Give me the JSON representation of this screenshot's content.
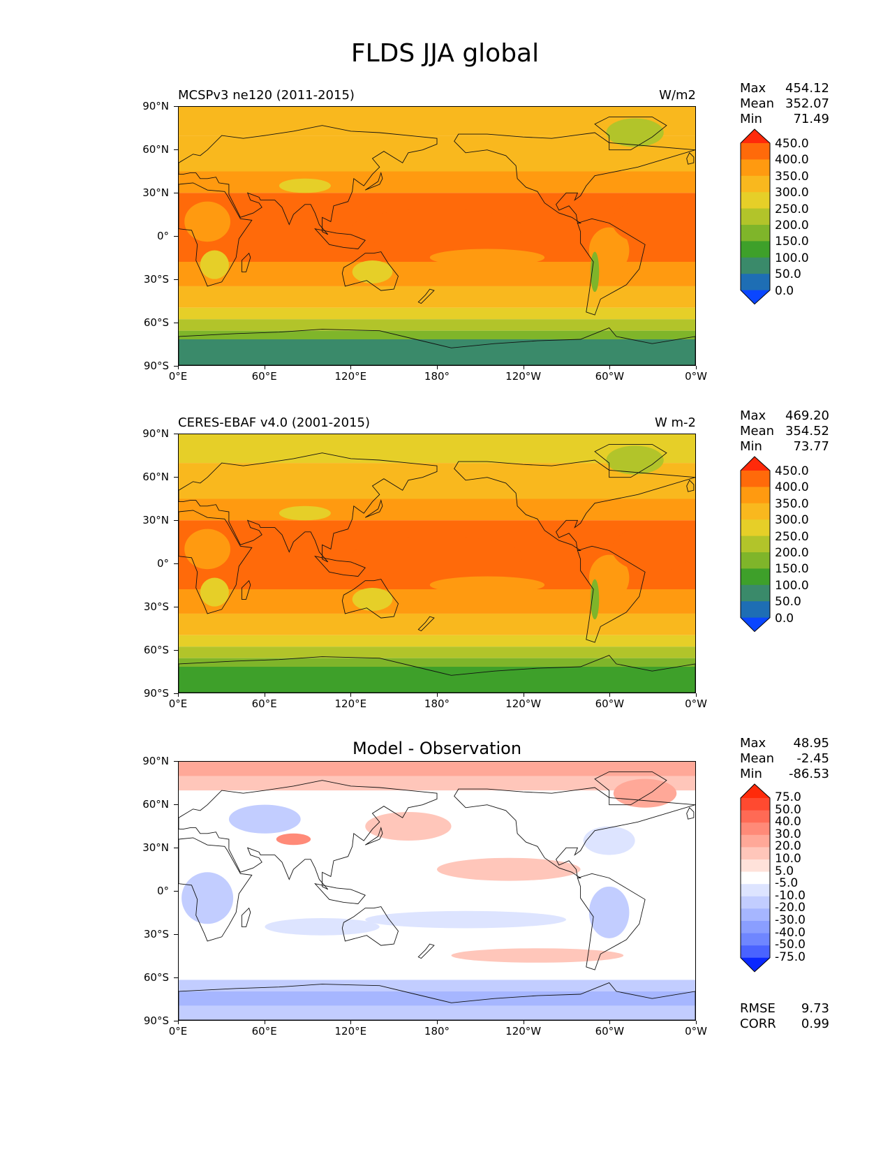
{
  "figure_title": "FLDS JJA global",
  "axes": {
    "lat_labels": [
      "90°N",
      "60°N",
      "30°N",
      "0°",
      "30°S",
      "60°S",
      "90°S"
    ],
    "lon_labels": [
      "0°E",
      "60°E",
      "120°E",
      "180°",
      "120°W",
      "60°W",
      "0°W"
    ]
  },
  "panels": [
    {
      "left_title": "MCSPv3 ne120 (2011-2015)",
      "right_title": "W/m2",
      "center_title": "",
      "stats": {
        "max_label": "Max",
        "max": "454.12",
        "mean_label": "Mean",
        "mean": "352.07",
        "min_label": "Min",
        "min": "71.49"
      },
      "colorbar_labels": [
        "450.0",
        "400.0",
        "350.0",
        "300.0",
        "250.0",
        "200.0",
        "150.0",
        "100.0",
        "50.0",
        "0.0"
      ],
      "colorbar_colors": [
        "#ff2a0a",
        "#ff6a0a",
        "#ff9a10",
        "#f9b81e",
        "#e6cf28",
        "#b2c42a",
        "#7fb52a",
        "#3ea02a",
        "#3a8a6a",
        "#1e6eb4",
        "#0a46ff"
      ]
    },
    {
      "left_title": "CERES-EBAF v4.0 (2001-2015)",
      "right_title": "W m-2",
      "center_title": "",
      "stats": {
        "max_label": "Max",
        "max": "469.20",
        "mean_label": "Mean",
        "mean": "354.52",
        "min_label": "Min",
        "min": "73.77"
      },
      "colorbar_labels": [
        "450.0",
        "400.0",
        "350.0",
        "300.0",
        "250.0",
        "200.0",
        "150.0",
        "100.0",
        "50.0",
        "0.0"
      ],
      "colorbar_colors": [
        "#ff2a0a",
        "#ff6a0a",
        "#ff9a10",
        "#f9b81e",
        "#e6cf28",
        "#b2c42a",
        "#7fb52a",
        "#3ea02a",
        "#3a8a6a",
        "#1e6eb4",
        "#0a46ff"
      ]
    },
    {
      "left_title": "",
      "right_title": "",
      "center_title": "Model - Observation",
      "stats": {
        "max_label": "Max",
        "max": "48.95",
        "mean_label": "Mean",
        "mean": "-2.45",
        "min_label": "Min",
        "min": "-86.53"
      },
      "colorbar_labels": [
        "75.0",
        "50.0",
        "40.0",
        "30.0",
        "20.0",
        "10.0",
        "5.0",
        "-5.0",
        "-10.0",
        "-20.0",
        "-30.0",
        "-40.0",
        "-50.0",
        "-75.0"
      ],
      "colorbar_colors": [
        "#ff2a0a",
        "#ff4a30",
        "#ff6a55",
        "#ff8a78",
        "#ffa898",
        "#ffc6ba",
        "#ffe2da",
        "#ffffff",
        "#dde4ff",
        "#c2cdff",
        "#a6b6ff",
        "#8a9eff",
        "#6f86ff",
        "#4a63ff",
        "#0a28ff"
      ],
      "footer": {
        "rmse_label": "RMSE",
        "rmse": "9.73",
        "corr_label": "CORR",
        "corr": "0.99"
      }
    }
  ]
}
